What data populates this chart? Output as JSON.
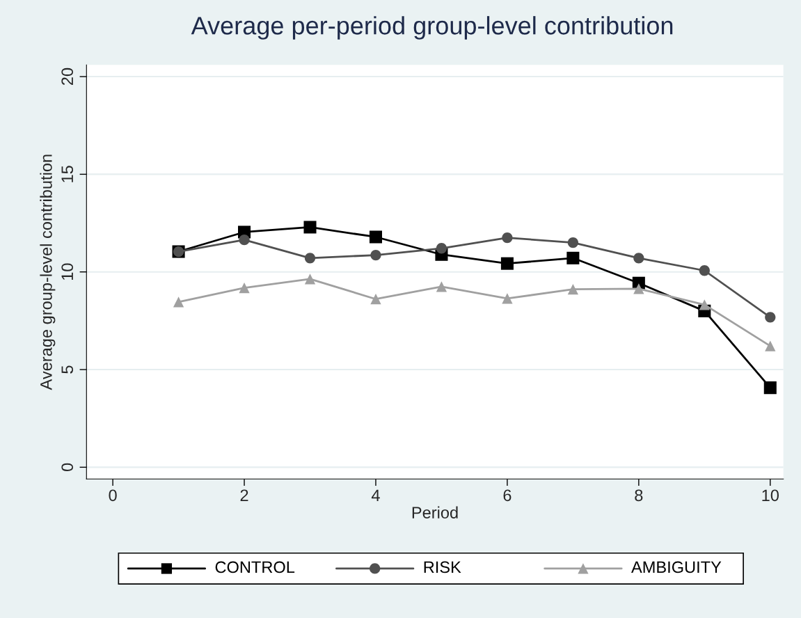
{
  "chart_data": {
    "type": "line",
    "title": "Average per-period group-level contribution",
    "xlabel": "Period",
    "ylabel": "Average group-level contribution",
    "x": [
      1,
      2,
      3,
      4,
      5,
      6,
      7,
      8,
      9,
      10
    ],
    "series": [
      {
        "name": "CONTROL",
        "color": "#000000",
        "marker": "square",
        "values": [
          11.04,
          12.04,
          12.29,
          11.79,
          10.89,
          10.43,
          10.71,
          9.43,
          8.0,
          4.07
        ]
      },
      {
        "name": "RISK",
        "color": "#505050",
        "marker": "circle",
        "values": [
          11.04,
          11.64,
          10.71,
          10.86,
          11.21,
          11.75,
          11.5,
          10.71,
          10.07,
          7.68
        ]
      },
      {
        "name": "AMBIGUITY",
        "color": "#a0a0a0",
        "marker": "triangle",
        "values": [
          8.46,
          9.18,
          9.64,
          8.61,
          9.25,
          8.64,
          9.11,
          9.14,
          8.32,
          6.21
        ]
      }
    ],
    "xlim": [
      -0.4,
      10.2
    ],
    "ylim": [
      -0.6,
      20.6
    ],
    "xticks": [
      0,
      2,
      4,
      6,
      8,
      10
    ],
    "yticks": [
      0,
      5,
      10,
      15,
      20
    ],
    "grid": "y",
    "legend": "bottom",
    "line_style": "solid"
  }
}
